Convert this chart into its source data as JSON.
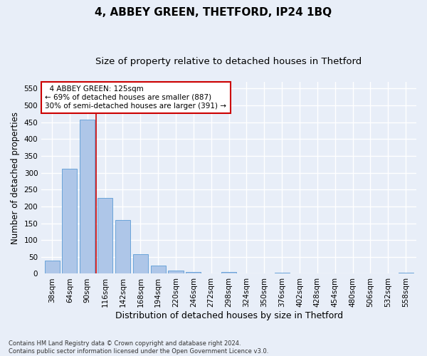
{
  "title1": "4, ABBEY GREEN, THETFORD, IP24 1BQ",
  "title2": "Size of property relative to detached houses in Thetford",
  "xlabel": "Distribution of detached houses by size in Thetford",
  "ylabel": "Number of detached properties",
  "footnote": "Contains HM Land Registry data © Crown copyright and database right 2024.\nContains public sector information licensed under the Open Government Licence v3.0.",
  "categories": [
    "38sqm",
    "64sqm",
    "90sqm",
    "116sqm",
    "142sqm",
    "168sqm",
    "194sqm",
    "220sqm",
    "246sqm",
    "272sqm",
    "298sqm",
    "324sqm",
    "350sqm",
    "376sqm",
    "402sqm",
    "428sqm",
    "454sqm",
    "480sqm",
    "506sqm",
    "532sqm",
    "558sqm"
  ],
  "values": [
    38,
    312,
    458,
    225,
    160,
    58,
    25,
    10,
    5,
    0,
    5,
    0,
    0,
    3,
    0,
    0,
    0,
    0,
    0,
    0,
    3
  ],
  "bar_color": "#aec6e8",
  "bar_edge_color": "#5b9bd5",
  "marker_color": "#cc0000",
  "marker_bin_index": 2.5,
  "annotation_text": "  4 ABBEY GREEN: 125sqm\n← 69% of detached houses are smaller (887)\n30% of semi-detached houses are larger (391) →",
  "annotation_box_color": "#ffffff",
  "annotation_box_edge": "#cc0000",
  "ylim": [
    0,
    570
  ],
  "yticks": [
    0,
    50,
    100,
    150,
    200,
    250,
    300,
    350,
    400,
    450,
    500,
    550
  ],
  "background_color": "#e8eef8",
  "plot_bg_color": "#e8eef8",
  "grid_color": "#ffffff",
  "title1_fontsize": 11,
  "title2_fontsize": 9.5,
  "xlabel_fontsize": 9,
  "ylabel_fontsize": 8.5,
  "tick_fontsize": 7.5,
  "footnote_fontsize": 6
}
